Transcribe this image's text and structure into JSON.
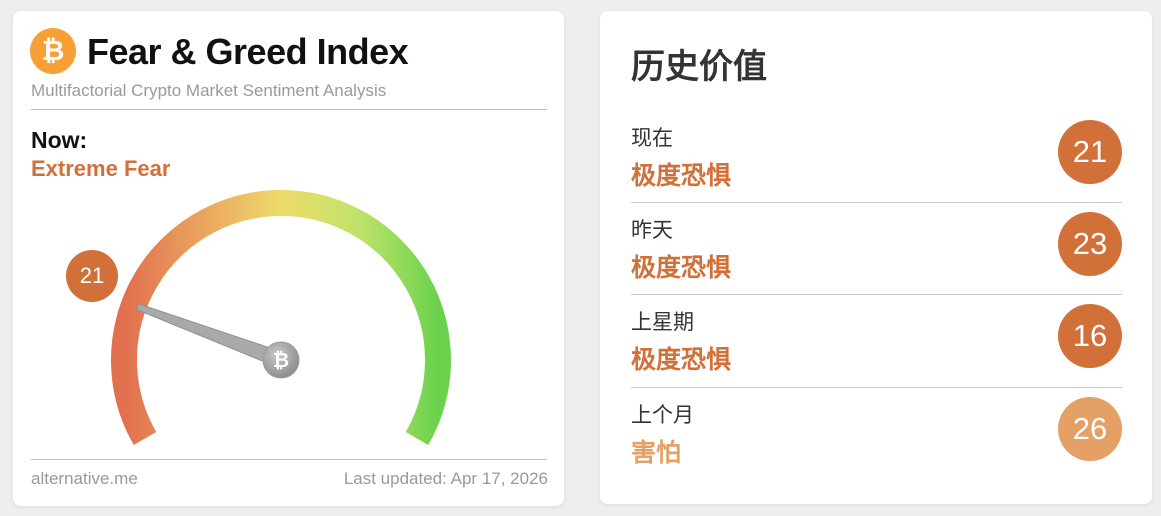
{
  "widget": {
    "title": "Fear & Greed Index",
    "subtitle": "Multifactorial Crypto Market Sentiment Analysis",
    "logo_icon": "bitcoin-icon",
    "now_label": "Now:",
    "classification": "Extreme Fear",
    "value": 21,
    "value_text": "21",
    "gauge_min": 0,
    "gauge_max": 100,
    "source": "alternative.me",
    "last_updated": "Last updated: Apr 17, 2026",
    "colors": {
      "extreme_fear": "#d2703a",
      "fear": "#e4a065",
      "logo": "#f7a035"
    }
  },
  "history": {
    "title": "历史价值",
    "rows": [
      {
        "label": "现在",
        "classification": "极度恐惧",
        "value": "21",
        "color": "#d2703a"
      },
      {
        "label": "昨天",
        "classification": "极度恐惧",
        "value": "23",
        "color": "#d2703a"
      },
      {
        "label": "上星期",
        "classification": "极度恐惧",
        "value": "16",
        "color": "#d2703a"
      },
      {
        "label": "上个月",
        "classification": "害怕",
        "value": "26",
        "color": "#e4a065"
      }
    ]
  }
}
